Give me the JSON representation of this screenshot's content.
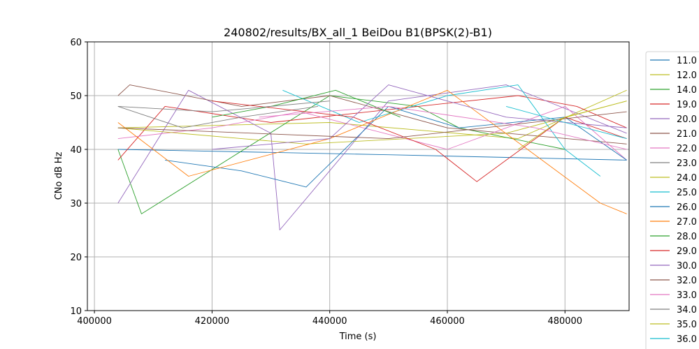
{
  "chart_data": {
    "type": "line",
    "title": "240802/results/BX_all_1 BeiDou B1(BPSK(2)-B1)",
    "xlabel": "Time (s)",
    "ylabel": "CNo dB Hz",
    "xlim": [
      398800,
      490900
    ],
    "ylim": [
      10,
      60
    ],
    "xticks": [
      400000,
      420000,
      440000,
      460000,
      480000
    ],
    "yticks": [
      10,
      20,
      30,
      40,
      50,
      60
    ],
    "grid": true,
    "legend_position": "outside-right",
    "series": [
      {
        "name": "11.0",
        "color": "#1f77b4",
        "x": [
          404000,
          450000,
          490500
        ],
        "y": [
          40,
          39,
          38
        ]
      },
      {
        "name": "12.0",
        "color": "#bcbd22",
        "x": [
          404000,
          440000,
          472000,
          490500
        ],
        "y": [
          44,
          45,
          42,
          51
        ]
      },
      {
        "name": "14.0",
        "color": "#2ca02c",
        "x": [
          404000,
          408000,
          440000,
          455000,
          462000,
          480000
        ],
        "y": [
          40,
          28,
          50,
          48,
          44,
          40
        ]
      },
      {
        "name": "19.0",
        "color": "#d62728",
        "x": [
          404000,
          412000,
          430000,
          455000,
          472000,
          482000,
          490500
        ],
        "y": [
          38,
          48,
          45,
          48,
          50,
          48,
          44
        ]
      },
      {
        "name": "20.0",
        "color": "#9467bd",
        "x": [
          404000,
          416000,
          430000,
          431500,
          450000,
          470000,
          490500
        ],
        "y": [
          30,
          51,
          43,
          25,
          49,
          52,
          43
        ]
      },
      {
        "name": "21.0",
        "color": "#8c564b",
        "x": [
          404000,
          406000,
          425000,
          440000,
          460000,
          490500
        ],
        "y": [
          50,
          52,
          48,
          50,
          44,
          41
        ]
      },
      {
        "name": "22.0",
        "color": "#e377c2",
        "x": [
          404000,
          420000,
          435000,
          460000,
          480000,
          490500
        ],
        "y": [
          42,
          44,
          47,
          40,
          48,
          38
        ]
      },
      {
        "name": "23.0",
        "color": "#7f7f7f",
        "x": [
          404000,
          415000,
          425000,
          438000
        ],
        "y": [
          48,
          44,
          46,
          48
        ]
      },
      {
        "name": "24.0",
        "color": "#bcbd22",
        "x": [
          404000,
          425000,
          436000,
          470000,
          490500
        ],
        "y": [
          44,
          42,
          41,
          43,
          49
        ]
      },
      {
        "name": "25.0",
        "color": "#17becf",
        "x": [
          432000,
          445000,
          460000,
          472000,
          480000,
          486000
        ],
        "y": [
          51,
          45,
          50,
          52,
          40,
          35
        ]
      },
      {
        "name": "26.0",
        "color": "#1f77b4",
        "x": [
          412000,
          425000,
          436000,
          450000,
          462000,
          480000,
          490500
        ],
        "y": [
          38,
          36,
          33,
          48,
          44,
          46,
          38
        ]
      },
      {
        "name": "27.0",
        "color": "#ff7f0e",
        "x": [
          404000,
          416000,
          440000,
          460000,
          486000,
          490500
        ],
        "y": [
          45,
          35,
          42,
          51,
          30,
          28
        ]
      },
      {
        "name": "28.0",
        "color": "#2ca02c",
        "x": [
          420000,
          430000,
          441000,
          452000
        ],
        "y": [
          46,
          48,
          51,
          46
        ]
      },
      {
        "name": "29.0",
        "color": "#d62728",
        "x": [
          420000,
          444000,
          458000,
          465000,
          480000,
          490500
        ],
        "y": [
          49,
          46,
          40,
          34,
          46,
          42
        ]
      },
      {
        "name": "30.0",
        "color": "#9467bd",
        "x": [
          420000,
          440000,
          450000,
          470000,
          490500
        ],
        "y": [
          40,
          42,
          52,
          46,
          44
        ]
      },
      {
        "name": "32.0",
        "color": "#8c564b",
        "x": [
          404000,
          450000,
          490500
        ],
        "y": [
          44,
          42,
          47
        ]
      },
      {
        "name": "33.0",
        "color": "#e377c2",
        "x": [
          428000,
          450000,
          475000,
          490500
        ],
        "y": [
          46,
          48,
          44,
          40
        ]
      },
      {
        "name": "34.0",
        "color": "#7f7f7f",
        "x": [
          404000,
          420000,
          440000
        ],
        "y": [
          48,
          47,
          49
        ]
      },
      {
        "name": "35.0",
        "color": "#bcbd22",
        "x": [
          472000,
          480000,
          490500
        ],
        "y": [
          40,
          46,
          49
        ]
      },
      {
        "name": "36.0",
        "color": "#17becf",
        "x": [
          470000,
          480000,
          490500
        ],
        "y": [
          48,
          45,
          42
        ]
      }
    ]
  }
}
